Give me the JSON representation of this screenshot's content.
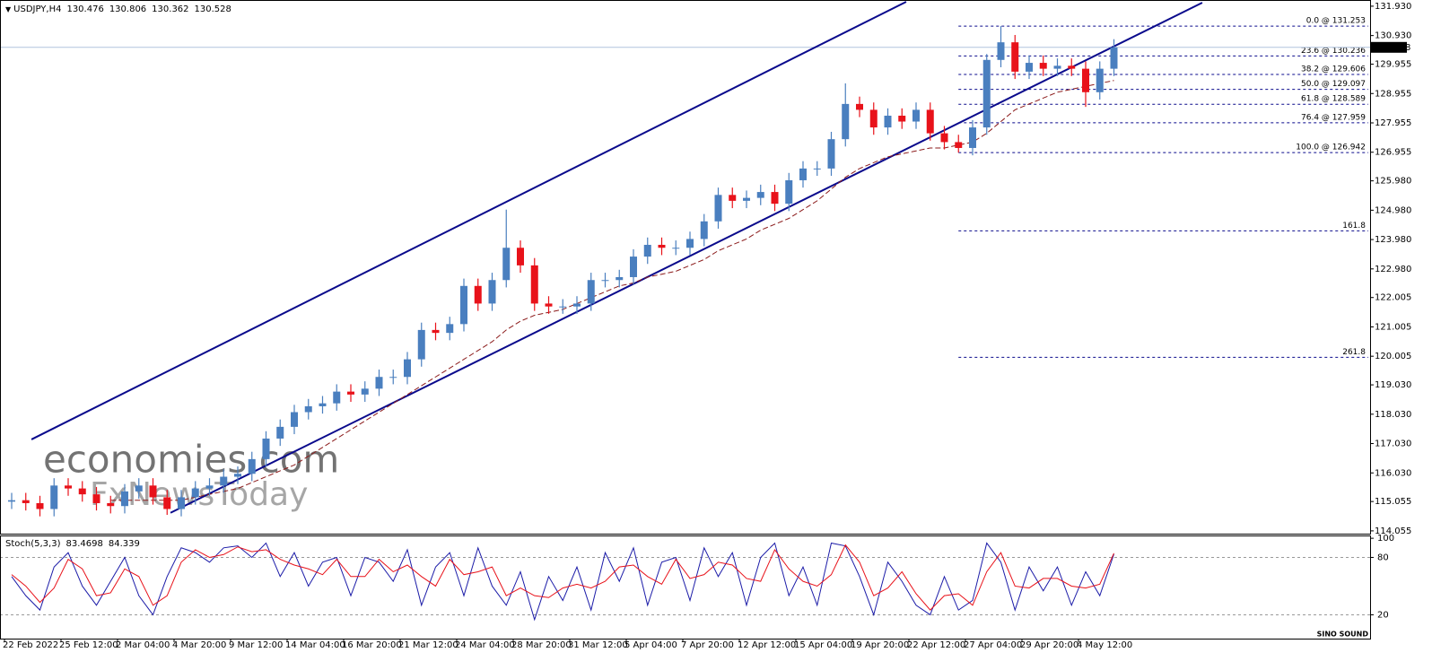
{
  "chart_data": [
    {
      "type": "candlestick",
      "title": "USDJPY,H4",
      "header_values": [
        130.476,
        130.806,
        130.362,
        130.528
      ],
      "categories": [
        "22 Feb 2022",
        null,
        null,
        null,
        "25 Feb 12:00",
        null,
        null,
        null,
        "2 Mar 04:00",
        null,
        null,
        null,
        "4 Mar 20:00",
        null,
        null,
        null,
        "9 Mar 12:00",
        null,
        null,
        null,
        "14 Mar 04:00",
        null,
        null,
        null,
        "16 Mar 20:00",
        null,
        null,
        null,
        "21 Mar 12:00",
        null,
        null,
        null,
        "24 Mar 04:00",
        null,
        null,
        null,
        "28 Mar 20:00",
        null,
        null,
        null,
        "31 Mar 12:00",
        null,
        null,
        null,
        "5 Apr 04:00",
        null,
        null,
        null,
        "7 Apr 20:00",
        null,
        null,
        null,
        "12 Apr 12:00",
        null,
        null,
        null,
        "15 Apr 04:00",
        null,
        null,
        null,
        "19 Apr 20:00",
        null,
        null,
        null,
        "22 Apr 12:00",
        null,
        null,
        null,
        "27 Apr 04:00",
        null,
        null,
        null,
        "29 Apr 20:00",
        null,
        null,
        null,
        "4 May 12:00",
        null,
        null
      ],
      "open": [
        115.05,
        115.1,
        115.0,
        114.8,
        115.6,
        115.5,
        115.3,
        115.0,
        114.9,
        115.4,
        115.6,
        115.2,
        114.8,
        115.2,
        115.5,
        115.6,
        115.9,
        116.0,
        116.5,
        117.2,
        117.6,
        118.1,
        118.3,
        118.4,
        118.8,
        118.7,
        118.9,
        119.3,
        119.3,
        119.9,
        120.9,
        120.8,
        121.1,
        122.4,
        121.8,
        122.6,
        123.7,
        123.1,
        121.8,
        121.7,
        121.7,
        121.8,
        122.6,
        122.6,
        122.7,
        123.4,
        123.8,
        123.7,
        123.7,
        124.0,
        124.6,
        125.5,
        125.3,
        125.4,
        125.6,
        125.2,
        126.0,
        126.4,
        126.4,
        127.4,
        128.6,
        128.4,
        127.8,
        128.2,
        128.0,
        128.4,
        127.6,
        127.3,
        127.1,
        127.8,
        130.1,
        130.7,
        129.7,
        130.0,
        129.8,
        129.9,
        129.8,
        129.0,
        129.8
      ],
      "high": [
        115.35,
        115.35,
        115.25,
        115.85,
        115.85,
        115.75,
        115.55,
        115.25,
        115.65,
        115.85,
        115.85,
        115.45,
        115.45,
        115.75,
        115.85,
        116.15,
        116.25,
        116.75,
        117.45,
        117.85,
        118.35,
        118.55,
        118.65,
        119.05,
        119.05,
        119.15,
        119.55,
        119.55,
        120.15,
        121.15,
        121.15,
        121.35,
        122.65,
        122.65,
        122.85,
        125.0,
        123.95,
        123.35,
        122.05,
        121.95,
        122.05,
        122.85,
        122.85,
        122.95,
        123.65,
        124.05,
        124.05,
        123.95,
        124.25,
        124.85,
        125.75,
        125.75,
        125.65,
        125.85,
        125.85,
        126.25,
        126.65,
        126.65,
        127.65,
        129.3,
        128.85,
        128.65,
        128.45,
        128.45,
        128.65,
        128.65,
        127.85,
        127.55,
        128.05,
        130.3,
        131.25,
        130.95,
        130.25,
        130.25,
        130.15,
        130.15,
        130.05,
        130.05,
        130.806
      ],
      "low": [
        114.8,
        114.75,
        114.55,
        114.55,
        115.25,
        115.05,
        114.75,
        114.65,
        114.65,
        115.15,
        114.95,
        114.6,
        114.55,
        114.95,
        115.25,
        115.35,
        115.65,
        115.75,
        116.25,
        116.95,
        117.35,
        117.85,
        118.05,
        118.15,
        118.45,
        118.45,
        118.65,
        119.05,
        119.05,
        119.65,
        120.55,
        120.55,
        120.85,
        121.55,
        121.55,
        122.35,
        122.85,
        121.55,
        121.45,
        121.45,
        121.45,
        121.55,
        122.35,
        122.35,
        122.45,
        123.15,
        123.45,
        123.45,
        123.45,
        123.75,
        124.35,
        125.05,
        125.05,
        125.15,
        124.95,
        124.95,
        125.75,
        126.15,
        126.15,
        127.15,
        128.15,
        127.55,
        127.55,
        127.75,
        127.75,
        127.35,
        127.05,
        126.942,
        126.85,
        127.55,
        129.85,
        129.45,
        129.45,
        129.55,
        129.55,
        129.55,
        128.5,
        128.75,
        129.55
      ],
      "close": [
        115.1,
        115.0,
        114.8,
        115.6,
        115.5,
        115.3,
        115.0,
        114.9,
        115.4,
        115.6,
        115.2,
        114.8,
        115.2,
        115.5,
        115.6,
        115.9,
        116.0,
        116.5,
        117.2,
        117.6,
        118.1,
        118.3,
        118.4,
        118.8,
        118.7,
        118.9,
        119.3,
        119.3,
        119.9,
        120.9,
        120.8,
        121.1,
        122.4,
        121.8,
        122.6,
        123.7,
        123.1,
        121.8,
        121.7,
        121.7,
        121.8,
        122.6,
        122.6,
        122.7,
        123.4,
        123.8,
        123.7,
        123.7,
        124.0,
        124.6,
        125.5,
        125.3,
        125.4,
        125.6,
        125.2,
        126.0,
        126.4,
        126.4,
        127.4,
        128.6,
        128.4,
        127.8,
        128.2,
        128.0,
        128.4,
        127.6,
        127.3,
        127.1,
        127.8,
        130.1,
        130.7,
        129.7,
        130.0,
        129.8,
        129.9,
        129.8,
        129.0,
        129.8,
        130.528
      ],
      "up_color": "#4a7fbf",
      "down_color": "#e8121a",
      "moving_average": {
        "color": "#8b1a1a",
        "values": [
          null,
          null,
          null,
          null,
          null,
          null,
          null,
          115.1,
          115.1,
          115.1,
          115.1,
          115.1,
          115.1,
          115.2,
          115.3,
          115.4,
          115.5,
          115.7,
          115.9,
          116.1,
          116.3,
          116.6,
          116.9,
          117.2,
          117.5,
          117.8,
          118.1,
          118.4,
          118.7,
          119.0,
          119.3,
          119.6,
          119.9,
          120.2,
          120.5,
          120.9,
          121.2,
          121.4,
          121.5,
          121.6,
          121.8,
          122.0,
          122.2,
          122.4,
          122.5,
          122.7,
          122.8,
          122.9,
          123.1,
          123.3,
          123.6,
          123.8,
          124.0,
          124.3,
          124.5,
          124.7,
          125.0,
          125.3,
          125.7,
          126.1,
          126.4,
          126.6,
          126.8,
          126.9,
          127.0,
          127.1,
          127.1,
          127.2,
          127.3,
          127.6,
          128.0,
          128.4,
          128.6,
          128.8,
          129.0,
          129.1,
          129.2,
          129.3,
          129.4
        ]
      },
      "trendlines": [
        {
          "color": "#0a0a8c",
          "x": [
            1.4,
            63.3
          ],
          "y": [
            117.17,
            132.08
          ]
        },
        {
          "color": "#0a0a8c",
          "x": [
            11.24,
            84.25
          ],
          "y": [
            114.67,
            132.05
          ]
        }
      ],
      "fibonacci": {
        "color": "#0a0a8c",
        "start": 67,
        "levels": [
          {
            "label": "0.0 @ 131.253",
            "price": 131.253
          },
          {
            "label": "23.6 @ 130.236",
            "price": 130.236
          },
          {
            "label": "38.2 @ 129.606",
            "price": 129.606
          },
          {
            "label": "50.0 @ 129.097",
            "price": 129.097
          },
          {
            "label": "61.8 @ 128.589",
            "price": 128.589
          },
          {
            "label": "76.4 @ 127.959",
            "price": 127.959
          },
          {
            "label": "100.0 @ 126.942",
            "price": 126.942
          },
          {
            "label": "161.8",
            "price": 124.278
          },
          {
            "label": "261.8",
            "price": 119.967
          }
        ]
      },
      "ylim": [
        113.96,
        132.08
      ],
      "yticks": [
        {
          "value": 131.93,
          "label": "131.930"
        },
        {
          "value": 130.93,
          "label": "130.930"
        },
        129.955,
        128.955,
        127.955,
        126.955,
        {
          "value": 125.98,
          "label": "125.980"
        },
        {
          "value": 124.98,
          "label": "124.980"
        },
        {
          "value": 123.98,
          "label": "123.980"
        },
        {
          "value": 122.98,
          "label": "122.980"
        },
        122.005,
        121.005,
        120.005,
        {
          "value": 119.03,
          "label": "119.030"
        },
        {
          "value": 118.03,
          "label": "118.030"
        },
        {
          "value": 117.03,
          "label": "117.030"
        },
        {
          "value": 116.03,
          "label": "116.030"
        },
        115.055,
        114.055
      ],
      "grid": false,
      "watermarks": [
        "economies.com",
        "FxNewsToday"
      ]
    },
    {
      "type": "line",
      "title": "Stoch(5,3,3)",
      "title_values": [
        83.4698,
        84.339
      ],
      "series": [
        {
          "name": "main",
          "color": "#1c1ca8",
          "values": [
            60,
            40,
            25,
            70,
            85,
            50,
            30,
            55,
            80,
            40,
            20,
            60,
            90,
            85,
            75,
            90,
            92,
            80,
            95,
            60,
            85,
            50,
            75,
            80,
            40,
            80,
            75,
            55,
            88,
            30,
            70,
            85,
            40,
            90,
            50,
            30,
            65,
            15,
            60,
            35,
            70,
            25,
            85,
            55,
            90,
            30,
            75,
            80,
            35,
            90,
            60,
            85,
            30,
            80,
            95,
            40,
            70,
            30,
            95,
            92,
            60,
            20,
            75,
            55,
            30,
            20,
            60,
            25,
            35,
            95,
            75,
            25,
            70,
            45,
            70,
            30,
            65,
            40,
            83.4698
          ]
        },
        {
          "name": "signal",
          "color": "#e8121a",
          "values": [
            62,
            50,
            33,
            48,
            78,
            68,
            40,
            43,
            68,
            60,
            30,
            40,
            75,
            88,
            80,
            83,
            91,
            86,
            88,
            78,
            72,
            68,
            62,
            78,
            60,
            60,
            78,
            65,
            72,
            60,
            50,
            78,
            62,
            65,
            70,
            40,
            48,
            40,
            38,
            48,
            52,
            48,
            55,
            70,
            72,
            60,
            52,
            78,
            58,
            62,
            75,
            72,
            58,
            55,
            88,
            68,
            55,
            50,
            62,
            93,
            75,
            40,
            48,
            65,
            42,
            25,
            40,
            42,
            30,
            65,
            85,
            50,
            48,
            58,
            58,
            50,
            48,
            52,
            84.339
          ]
        }
      ],
      "levels": [
        80,
        20
      ],
      "ylim": [
        -3,
        102
      ],
      "yticks": [
        20,
        80,
        100
      ]
    },
    {
      "type": "logo",
      "title": "SINO SOUND"
    }
  ]
}
